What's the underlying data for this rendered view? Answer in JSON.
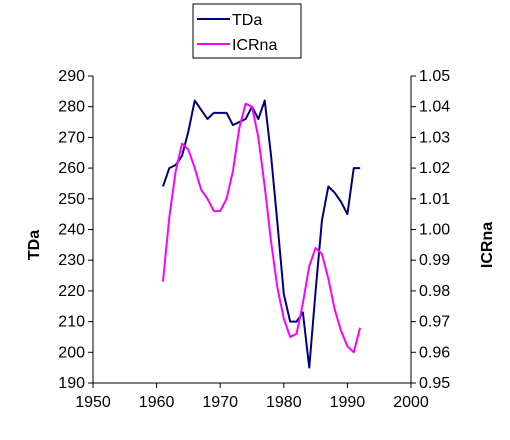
{
  "chart_data": {
    "type": "line",
    "x_axis": {
      "label": "",
      "min": 1950,
      "max": 2000,
      "ticks": [
        1950,
        1960,
        1970,
        1980,
        1990,
        2000
      ]
    },
    "y_left": {
      "label": "TDa",
      "min": 190,
      "max": 290,
      "ticks": [
        190,
        200,
        210,
        220,
        230,
        240,
        250,
        260,
        270,
        280,
        290
      ]
    },
    "y_right": {
      "label": "ICRna",
      "min": 0.95,
      "max": 1.05,
      "ticks": [
        "0.95",
        "0.96",
        "0.97",
        "0.98",
        "0.99",
        "1.00",
        "1.01",
        "1.02",
        "1.03",
        "1.04",
        "1.05"
      ]
    },
    "legend": {
      "position": "top-center",
      "border": true
    },
    "series": [
      {
        "name": "TDa",
        "axis": "left",
        "color": "#00007f",
        "points": [
          [
            1961,
            254
          ],
          [
            1962,
            260
          ],
          [
            1963,
            261
          ],
          [
            1964,
            264
          ],
          [
            1965,
            272
          ],
          [
            1966,
            282
          ],
          [
            1967,
            279
          ],
          [
            1968,
            276
          ],
          [
            1969,
            278
          ],
          [
            1970,
            278
          ],
          [
            1971,
            278
          ],
          [
            1972,
            274
          ],
          [
            1973,
            275
          ],
          [
            1974,
            276
          ],
          [
            1975,
            280
          ],
          [
            1976,
            276
          ],
          [
            1977,
            282
          ],
          [
            1978,
            264
          ],
          [
            1979,
            242
          ],
          [
            1980,
            219
          ],
          [
            1981,
            210
          ],
          [
            1982,
            210
          ],
          [
            1983,
            213
          ],
          [
            1984,
            195
          ],
          [
            1985,
            220
          ],
          [
            1986,
            243
          ],
          [
            1987,
            254
          ],
          [
            1988,
            252
          ],
          [
            1989,
            249
          ],
          [
            1990,
            245
          ],
          [
            1991,
            260
          ],
          [
            1992,
            260
          ]
        ]
      },
      {
        "name": "ICRna",
        "axis": "right",
        "color": "#ff00ff",
        "points": [
          [
            1961,
            0.983
          ],
          [
            1962,
            1.004
          ],
          [
            1963,
            1.019
          ],
          [
            1964,
            1.028
          ],
          [
            1965,
            1.026
          ],
          [
            1966,
            1.02
          ],
          [
            1967,
            1.013
          ],
          [
            1968,
            1.01
          ],
          [
            1969,
            1.006
          ],
          [
            1970,
            1.006
          ],
          [
            1971,
            1.01
          ],
          [
            1972,
            1.019
          ],
          [
            1973,
            1.033
          ],
          [
            1974,
            1.041
          ],
          [
            1975,
            1.04
          ],
          [
            1976,
            1.03
          ],
          [
            1977,
            1.014
          ],
          [
            1978,
            0.996
          ],
          [
            1979,
            0.981
          ],
          [
            1980,
            0.971
          ],
          [
            1981,
            0.965
          ],
          [
            1982,
            0.966
          ],
          [
            1983,
            0.976
          ],
          [
            1984,
            0.988
          ],
          [
            1985,
            0.994
          ],
          [
            1986,
            0.992
          ],
          [
            1987,
            0.984
          ],
          [
            1988,
            0.974
          ],
          [
            1989,
            0.967
          ],
          [
            1990,
            0.962
          ],
          [
            1991,
            0.96
          ],
          [
            1992,
            0.968
          ]
        ]
      }
    ]
  }
}
